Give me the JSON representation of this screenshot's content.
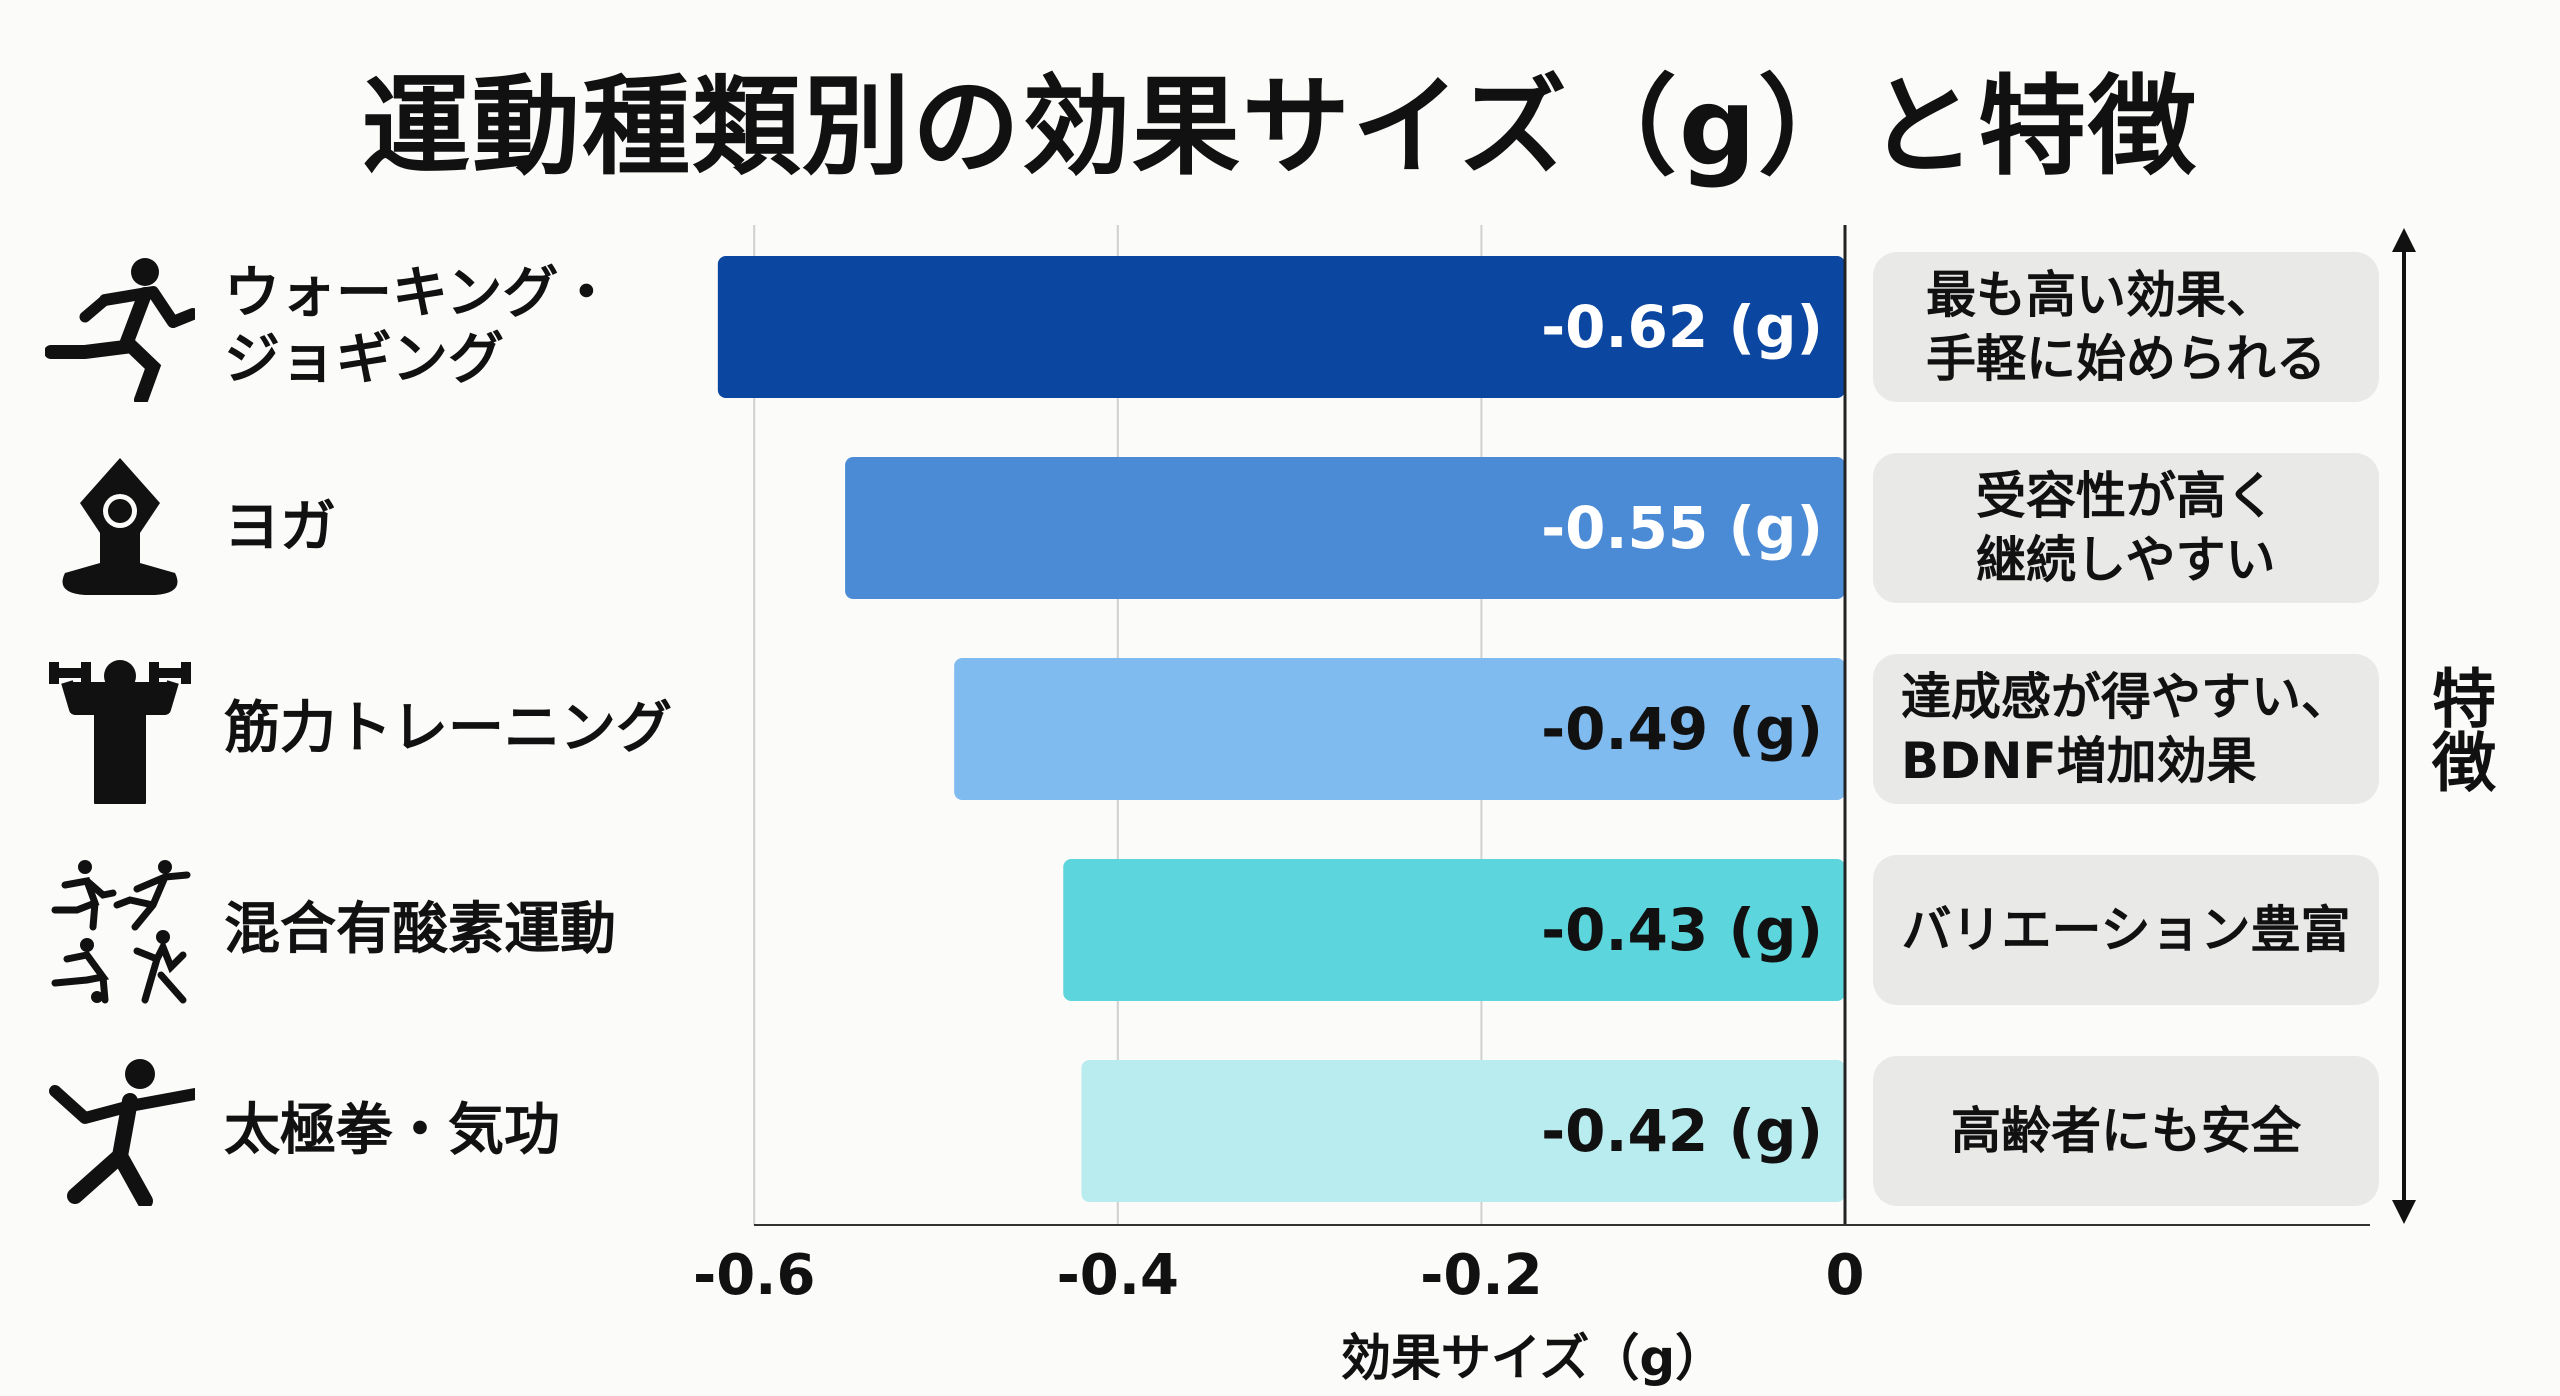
{
  "title": "運動種類別の効果サイズ（g）と特徴",
  "chart_data": {
    "type": "bar",
    "orientation": "horizontal",
    "title": "運動種類別の効果サイズ（g）と特徴",
    "xlabel": "効果サイズ（g）",
    "ylabel": "",
    "xlim": [
      -0.6,
      0
    ],
    "xticks": [
      -0.6,
      -0.4,
      -0.2,
      0
    ],
    "xtick_labels": [
      "-0.6",
      "-0.4",
      "-0.2",
      "0"
    ],
    "grid": "vertical",
    "categories": [
      "ウォーキング・\nジョギング",
      "ヨガ",
      "筋力トレーニング",
      "混合有酸素運動",
      "太極拳・気功"
    ],
    "values": [
      -0.62,
      -0.55,
      -0.49,
      -0.43,
      -0.42
    ],
    "data_labels": [
      "-0.62 (g)",
      "-0.55 (g)",
      "-0.49 (g)",
      "-0.43 (g)",
      "-0.42 (g)"
    ],
    "colors": [
      "#0b47a1",
      "#4b8bd6",
      "#80bbf0",
      "#5cd5dc",
      "#b8ecee"
    ],
    "label_colors": [
      "#ffffff",
      "#ffffff",
      "#111111",
      "#111111",
      "#111111"
    ],
    "icons": [
      "running-person-icon",
      "yoga-person-icon",
      "weightlifting-person-icon",
      "mixed-aerobic-people-icon",
      "tai-chi-person-icon"
    ],
    "features": [
      "最も高い効果、\n手軽に始められる",
      "受容性が高く\n継続しやすい",
      "達成感が得やすい、\nBDNF増加効果",
      "バリエーション豊富",
      "高齢者にも安全"
    ],
    "features_heading": "特徴"
  }
}
